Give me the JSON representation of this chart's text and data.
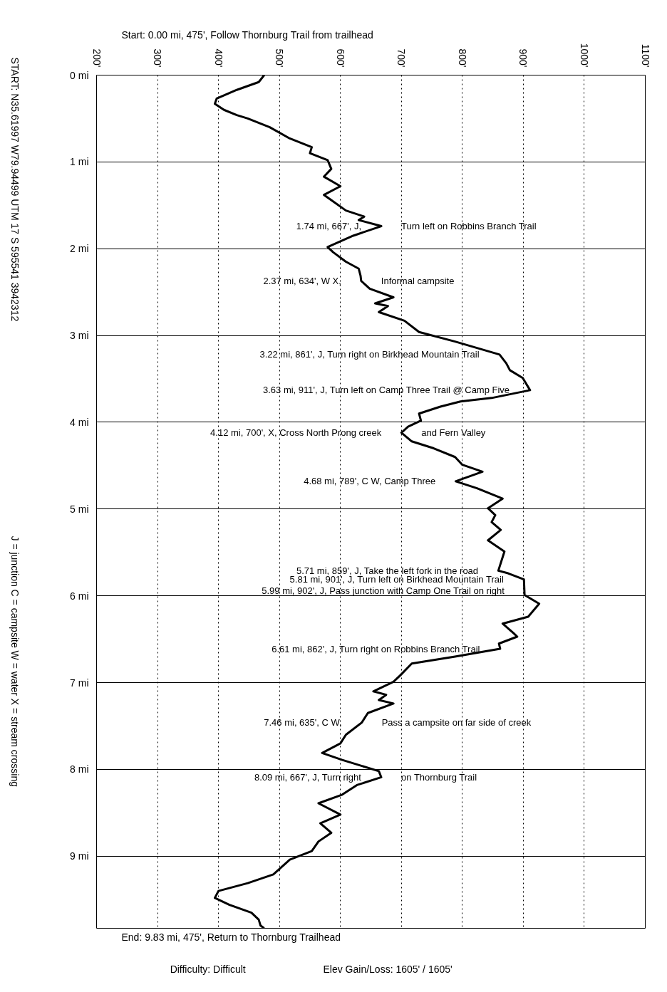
{
  "chart_data": {
    "type": "line",
    "xlim": [
      200,
      1100
    ],
    "xticks": [
      {
        "value": 200,
        "label": "200'"
      },
      {
        "value": 300,
        "label": "300'"
      },
      {
        "value": 400,
        "label": "400'"
      },
      {
        "value": 500,
        "label": "500'"
      },
      {
        "value": 600,
        "label": "600'"
      },
      {
        "value": 700,
        "label": "700'"
      },
      {
        "value": 800,
        "label": "800'"
      },
      {
        "value": 900,
        "label": "900'"
      },
      {
        "value": 1000,
        "label": "1000'"
      },
      {
        "value": 1100,
        "label": "1100'"
      }
    ],
    "ylim": [
      9.83,
      0
    ],
    "yticks": [
      {
        "value": 0,
        "label": "0 mi"
      },
      {
        "value": 1,
        "label": "1 mi"
      },
      {
        "value": 2,
        "label": "2 mi"
      },
      {
        "value": 3,
        "label": "3 mi"
      },
      {
        "value": 4,
        "label": "4 mi"
      },
      {
        "value": 5,
        "label": "5 mi"
      },
      {
        "value": 6,
        "label": "6 mi"
      },
      {
        "value": 7,
        "label": "7 mi"
      },
      {
        "value": 8,
        "label": "8 mi"
      },
      {
        "value": 9,
        "label": "9 mi"
      }
    ],
    "grid": true,
    "series": [
      {
        "color": "#000000",
        "x": [
          475,
          466,
          430,
          397,
          394,
          409,
          430,
          448,
          484,
          517,
          553,
          550,
          579,
          585,
          573,
          600,
          573,
          585,
          609,
          639,
          630,
          667,
          621,
          579,
          588,
          609,
          630,
          633,
          634,
          648,
          687,
          657,
          678,
          663,
          705,
          729,
          788,
          861,
          872,
          878,
          899,
          911,
          848,
          797,
          764,
          729,
          732,
          711,
          700,
          717,
          753,
          788,
          800,
          833,
          789,
          824,
          866,
          842,
          854,
          848,
          863,
          842,
          869,
          859,
          875,
          901,
          902,
          926,
          908,
          866,
          884,
          890,
          860,
          862,
          788,
          717,
          699,
          687,
          654,
          675,
          663,
          687,
          645,
          635,
          609,
          600,
          570,
          603,
          663,
          667,
          627,
          603,
          564,
          600,
          567,
          585,
          564,
          553,
          517,
          490,
          448,
          400,
          394,
          418,
          454,
          466,
          469,
          475
        ],
        "values": [
          0.0,
          0.08,
          0.17,
          0.27,
          0.33,
          0.4,
          0.46,
          0.5,
          0.6,
          0.73,
          0.83,
          0.9,
          0.98,
          1.08,
          1.17,
          1.28,
          1.38,
          1.44,
          1.56,
          1.63,
          1.67,
          1.74,
          1.85,
          1.98,
          2.04,
          2.15,
          2.23,
          2.31,
          2.37,
          2.46,
          2.56,
          2.63,
          2.66,
          2.73,
          2.83,
          2.96,
          3.07,
          3.22,
          3.32,
          3.4,
          3.49,
          3.63,
          3.72,
          3.76,
          3.82,
          3.9,
          3.98,
          4.05,
          4.12,
          4.22,
          4.3,
          4.4,
          4.49,
          4.57,
          4.68,
          4.76,
          4.88,
          4.99,
          5.07,
          5.15,
          5.24,
          5.36,
          5.49,
          5.71,
          5.74,
          5.81,
          5.99,
          6.09,
          6.24,
          6.32,
          6.43,
          6.47,
          6.55,
          6.61,
          6.7,
          6.78,
          6.91,
          6.99,
          7.1,
          7.14,
          7.2,
          7.24,
          7.35,
          7.46,
          7.6,
          7.7,
          7.81,
          7.89,
          8.02,
          8.09,
          8.18,
          8.29,
          8.39,
          8.52,
          8.62,
          8.73,
          8.83,
          8.94,
          9.04,
          9.21,
          9.31,
          9.4,
          9.48,
          9.56,
          9.65,
          9.73,
          9.8,
          9.83
        ]
      }
    ],
    "annotations": [
      "Start: 0.00 mi, 475', Follow Thornburg Trail from trailhead",
      "End: 9.83 mi, 475', Return to Thornburg Trailhead",
      "Difficulty: Difficult",
      "Elev Gain/Loss: 1605' / 1605'",
      "START: N35.61997 W79.94499  UTM 17 S 595541 3942312",
      "J = junction  C = campsite  W = water  X = stream crossing",
      {
        "text": "1.74 mi, 667', J,",
        "x": 667,
        "y": 1.74
      },
      {
        "text": "Turn left on Robbins Branch Trail",
        "x": 667,
        "y": 1.74
      },
      {
        "text": "2.37 mi, 634', W X,",
        "x": 634,
        "y": 2.37
      },
      {
        "text": "Informal campsite",
        "x": 634,
        "y": 2.37
      },
      {
        "text": "3.22 mi, 861', J, Turn right on Birkhead Mountain Trail",
        "x": 861,
        "y": 3.22
      },
      {
        "text": "3.63 mi, 911', J, Turn left on Camp Three Trail @ Camp Five",
        "x": 911,
        "y": 3.63
      },
      {
        "text": "4.12 mi, 700', X, Cross North Prong creek",
        "x": 700,
        "y": 4.12
      },
      {
        "text": "and Fern Valley",
        "x": 700,
        "y": 4.12
      },
      {
        "text": "4.68 mi, 789', C W, Camp Three",
        "x": 789,
        "y": 4.68
      },
      {
        "text": "5.71 mi, 859', J, Take the left fork in the road",
        "x": 859,
        "y": 5.71
      },
      {
        "text": "5.81 mi, 901', J, Turn left on Birkhead Mountain Trail",
        "x": 901,
        "y": 5.81
      },
      {
        "text": "5.99 mi, 902', J, Pass junction with Camp One Trail on right",
        "x": 902,
        "y": 5.99
      },
      {
        "text": "6.61 mi, 862', J, Turn right on Robbins Branch Trail",
        "x": 862,
        "y": 6.61
      },
      {
        "text": "7.46 mi, 635', C W,",
        "x": 635,
        "y": 7.46
      },
      {
        "text": "Pass a campsite on far side of creek",
        "x": 635,
        "y": 7.46
      },
      {
        "text": "8.09 mi, 667', J, Turn right",
        "x": 667,
        "y": 8.09
      },
      {
        "text": "on Thornburg Trail",
        "x": 667,
        "y": 8.09
      }
    ]
  }
}
